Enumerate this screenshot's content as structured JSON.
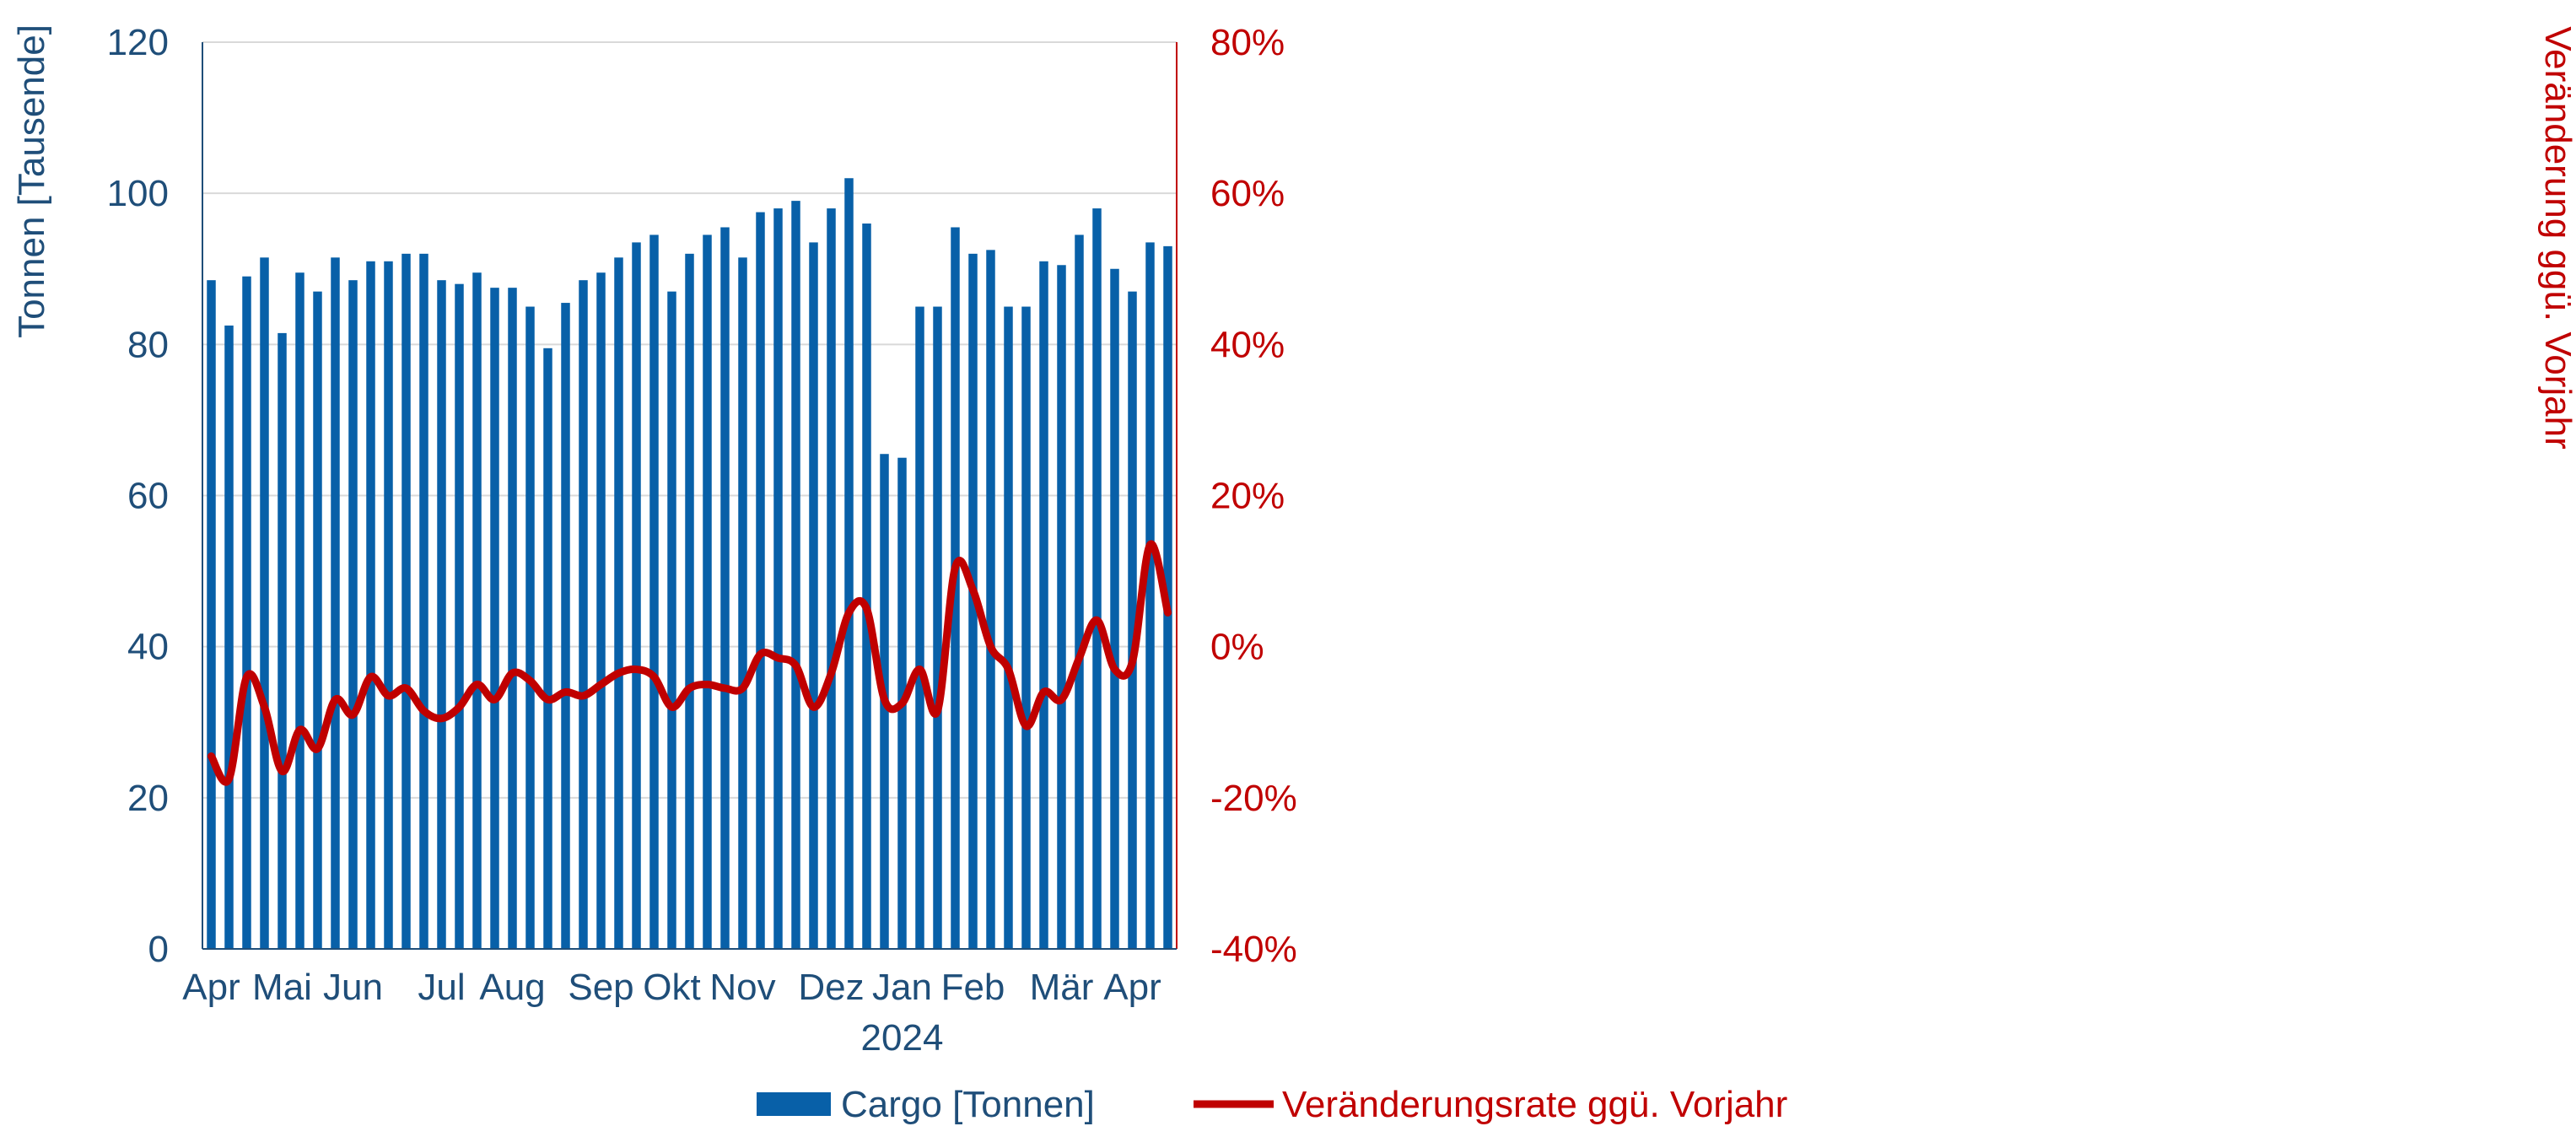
{
  "chart_data": {
    "type": "bar",
    "y_left": {
      "label": "Tonnen [Tausende]",
      "range": [
        0,
        120
      ],
      "ticks": [
        0,
        20,
        40,
        60,
        80,
        100,
        120
      ]
    },
    "y_right": {
      "label": "Veränderung ggü. Vorjahr",
      "range": [
        -40,
        80
      ],
      "ticks": [
        "-40%",
        "-20%",
        "0%",
        "20%",
        "40%",
        "60%",
        "80%"
      ]
    },
    "x_ticks": [
      {
        "label": "Apr",
        "index": 0
      },
      {
        "label": "Mai",
        "index": 4
      },
      {
        "label": "Jun",
        "index": 8
      },
      {
        "label": "Jul",
        "index": 13
      },
      {
        "label": "Aug",
        "index": 17
      },
      {
        "label": "Sep",
        "index": 22
      },
      {
        "label": "Okt",
        "index": 26
      },
      {
        "label": "Nov",
        "index": 30
      },
      {
        "label": "Dez",
        "index": 35
      },
      {
        "label": "Jan",
        "index": 39,
        "sublabel": "2024"
      },
      {
        "label": "Feb",
        "index": 43
      },
      {
        "label": "Mär",
        "index": 48
      },
      {
        "label": "Apr",
        "index": 52
      }
    ],
    "grid": true,
    "legend_position": "bottom",
    "series": [
      {
        "name": "Cargo [Tonnen]",
        "type": "bar",
        "axis": "left",
        "color": "#0860a8",
        "values": [
          88.5,
          82.5,
          89,
          91.5,
          81.5,
          89.5,
          87,
          91.5,
          88.5,
          91,
          91,
          92,
          92,
          88.5,
          88,
          89.5,
          87.5,
          87.5,
          85,
          79.5,
          85.5,
          88.5,
          89.5,
          91.5,
          93.5,
          94.5,
          87,
          92,
          94.5,
          95.5,
          91.5,
          97.5,
          98,
          99,
          93.5,
          98,
          102,
          96,
          65.5,
          65,
          85,
          85,
          95.5,
          92,
          92.5,
          85,
          85,
          91,
          90.5,
          94.5,
          98,
          90,
          87,
          93.5,
          93
        ]
      },
      {
        "name": "Veränderungsrate ggü. Vorjahr",
        "type": "line",
        "axis": "right",
        "color": "#c00000",
        "values": [
          -14.5,
          -17.5,
          -4,
          -8,
          -16.5,
          -11,
          -13.5,
          -7,
          -9,
          -4,
          -6.5,
          -5.5,
          -8.5,
          -9.5,
          -8,
          -5,
          -7,
          -3.5,
          -4.5,
          -7,
          -6,
          -6.5,
          -5,
          -3.5,
          -3,
          -4,
          -8,
          -5.5,
          -5,
          -5.5,
          -5.5,
          -1,
          -1.5,
          -2.5,
          -8,
          -3.5,
          4.5,
          5,
          -7,
          -7.5,
          -3,
          -8.5,
          10.5,
          7.5,
          0,
          -3,
          -10.5,
          -6,
          -7,
          -1.5,
          3.5,
          -3,
          -2,
          13.5,
          4.5
        ]
      }
    ]
  }
}
